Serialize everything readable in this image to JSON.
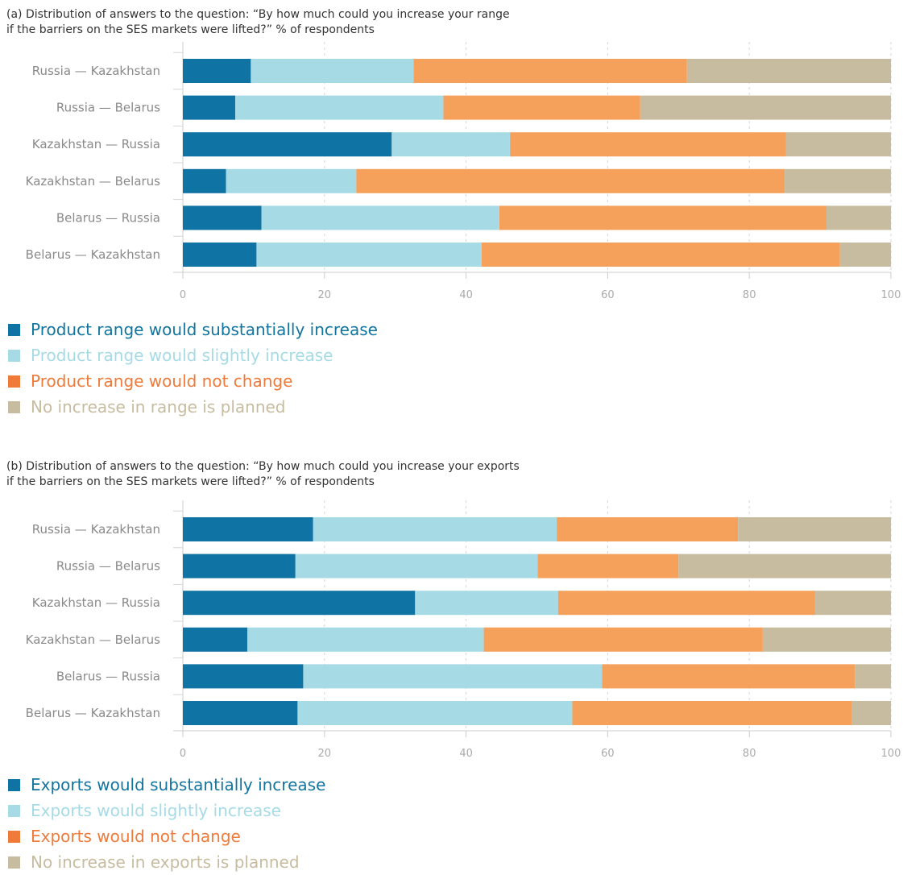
{
  "chart_data": [
    {
      "type": "bar",
      "orientation": "horizontal",
      "stacked": true,
      "title": "(a) Distribution of answers to the question: “By how much could you increase your range\nif the barriers on the SES markets were lifted?” % of respondents",
      "categories": [
        "Russia — Kazakhstan",
        "Russia — Belarus",
        "Kazakhstan — Russia",
        "Kazakhstan — Belarus",
        "Belarus — Russia",
        "Belarus — Kazakhstan"
      ],
      "series": [
        {
          "name": "Product range would substantially increase",
          "color": "#0f73a3",
          "values": [
            9.6,
            7.4,
            29.5,
            6.1,
            11.1,
            10.4
          ]
        },
        {
          "name": "Product range would slightly increase",
          "color": "#a6dbe6",
          "values": [
            23.0,
            29.4,
            16.7,
            18.4,
            33.6,
            31.8
          ]
        },
        {
          "name": "Product range would not change",
          "color": "#f5a15c",
          "values": [
            38.6,
            27.8,
            39.0,
            60.5,
            46.2,
            50.6
          ]
        },
        {
          "name": "No increase in range is planned",
          "color": "#c7bc9f",
          "values": [
            28.8,
            35.4,
            14.8,
            15.0,
            9.1,
            7.2
          ]
        }
      ],
      "xlim": [
        0,
        100
      ],
      "xticks": [
        0,
        20,
        40,
        60,
        80,
        100
      ],
      "grid": true,
      "legend_position": "bottom-left",
      "legend_text_colors": [
        "#12759f",
        "#a6dbe6",
        "#ef7a3a",
        "#c7bc9f"
      ]
    },
    {
      "type": "bar",
      "orientation": "horizontal",
      "stacked": true,
      "title": "(b) Distribution of answers to the question: “By how much could you increase your exports\nif the barriers on the SES markets were lifted?” % of respondents",
      "categories": [
        "Russia — Kazakhstan",
        "Russia — Belarus",
        "Kazakhstan — Russia",
        "Kazakhstan — Belarus",
        "Belarus — Russia",
        "Belarus — Kazakhstan"
      ],
      "series": [
        {
          "name": "Exports would substantially increase",
          "color": "#0f73a3",
          "values": [
            18.4,
            15.9,
            32.8,
            9.1,
            17.0,
            16.2
          ]
        },
        {
          "name": "Exports would slightly increase",
          "color": "#a6dbe6",
          "values": [
            34.4,
            34.2,
            20.2,
            33.4,
            42.2,
            38.8
          ]
        },
        {
          "name": "Exports would not change",
          "color": "#f5a15c",
          "values": [
            25.6,
            19.9,
            36.3,
            39.4,
            35.7,
            39.5
          ]
        },
        {
          "name": "No increase in exports is planned",
          "color": "#c7bc9f",
          "values": [
            21.6,
            30.0,
            10.7,
            18.1,
            5.1,
            5.5
          ]
        }
      ],
      "xlim": [
        0,
        100
      ],
      "xticks": [
        0,
        20,
        40,
        60,
        80,
        100
      ],
      "grid": true,
      "legend_position": "bottom-left",
      "legend_text_colors": [
        "#12759f",
        "#a6dbe6",
        "#ef7a3a",
        "#c7bc9f"
      ]
    }
  ]
}
